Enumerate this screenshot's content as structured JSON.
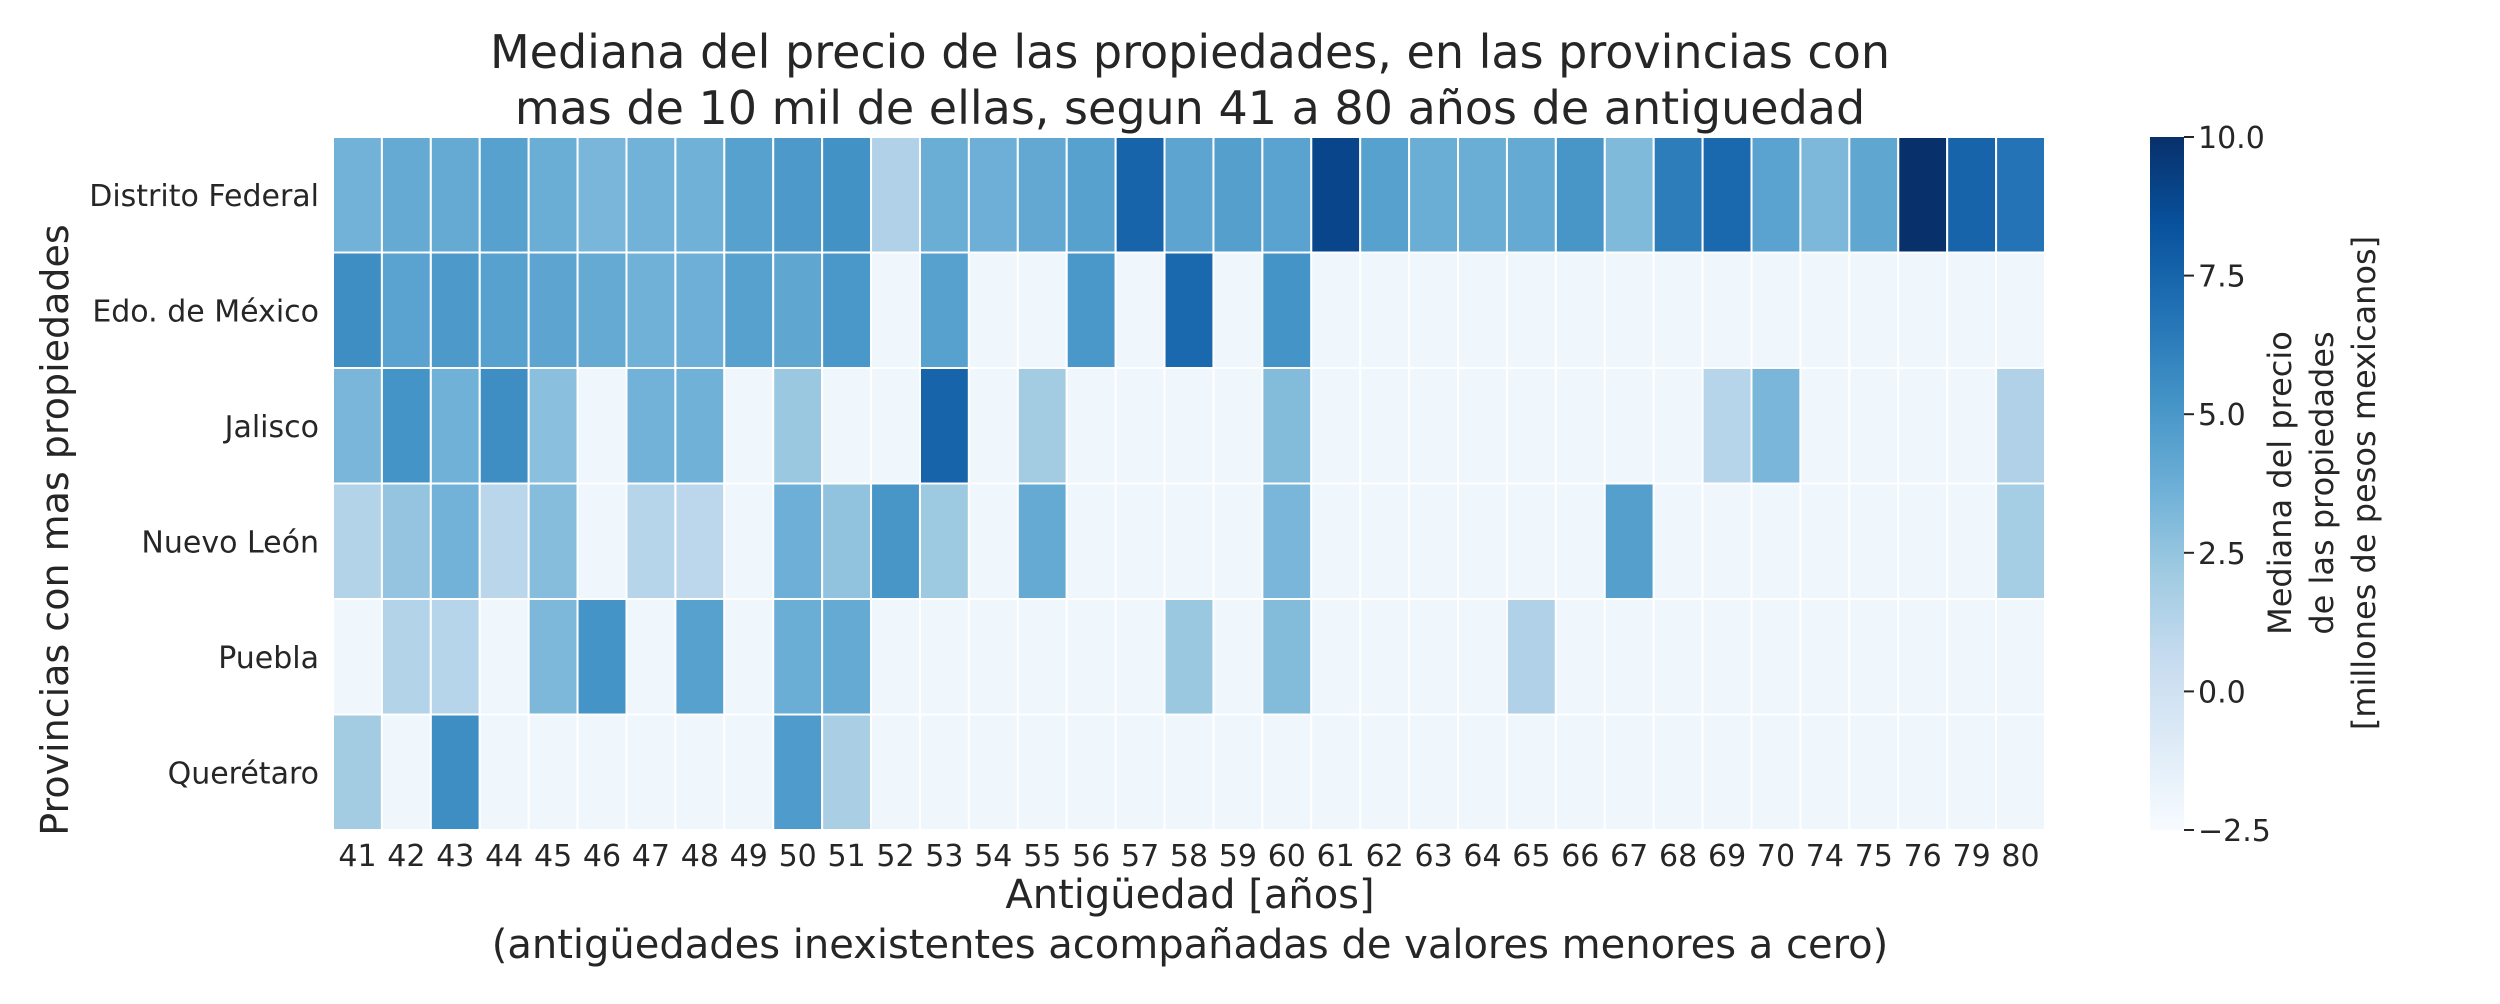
{
  "chart_data": {
    "type": "heatmap",
    "title_lines": [
      "Mediana del precio de las propiedades, en las provincias con",
      "mas de 10 mil de ellas, segun 41 a 80 años de antiguedad"
    ],
    "xlabel_lines": [
      "Antigüedad [años]",
      "(antigüedades inexistentes acompañadas de valores menores a cero)"
    ],
    "ylabel": "Provincias con mas propiedades",
    "colorbar_label_lines": [
      "Mediana del precio",
      "de las propiedades",
      "[millones de pesos mexicanos]"
    ],
    "colorbar_range": [
      -2.5,
      10.0
    ],
    "colorbar_ticks": [
      "−2.5",
      "0.0",
      "2.5",
      "5.0",
      "7.5",
      "10.0"
    ],
    "colormap": "Blues",
    "x": [
      "41",
      "42",
      "43",
      "44",
      "45",
      "46",
      "47",
      "48",
      "49",
      "50",
      "51",
      "52",
      "53",
      "54",
      "55",
      "56",
      "57",
      "58",
      "59",
      "60",
      "61",
      "62",
      "63",
      "64",
      "65",
      "66",
      "67",
      "68",
      "69",
      "70",
      "74",
      "75",
      "76",
      "79",
      "80"
    ],
    "y": [
      "Distrito Federal",
      "Edo. de México",
      "Jalisco",
      "Nuevo León",
      "Puebla",
      "Querétaro"
    ],
    "values": [
      [
        3.5,
        4.0,
        4.0,
        4.5,
        3.8,
        3.3,
        3.5,
        3.6,
        4.5,
        4.9,
        5.3,
        1.5,
        3.8,
        3.7,
        4.1,
        4.5,
        7.5,
        4.3,
        4.6,
        4.4,
        9.0,
        4.5,
        3.8,
        3.8,
        4.0,
        5.1,
        3.1,
        6.3,
        7.3,
        4.4,
        3.2,
        4.2,
        10.0,
        7.5,
        6.8
      ],
      [
        5.5,
        4.4,
        4.9,
        4.5,
        4.3,
        4.0,
        3.6,
        3.7,
        4.5,
        4.2,
        5.0,
        -2.0,
        4.5,
        -2.0,
        -2.0,
        5.0,
        -2.0,
        7.3,
        -2.0,
        5.2,
        -2.0,
        -2.0,
        -2.0,
        -2.0,
        -2.0,
        -2.0,
        -2.0,
        -2.0,
        -2.0,
        -2.0,
        -2.0,
        -2.0,
        -2.0,
        -2.0,
        -2.0
      ],
      [
        3.3,
        5.2,
        3.6,
        5.5,
        2.8,
        -2.0,
        3.5,
        3.6,
        -2.0,
        2.3,
        -2.0,
        -2.0,
        7.5,
        -2.0,
        2.0,
        -2.0,
        -2.0,
        -2.0,
        -2.0,
        3.0,
        -2.0,
        -2.0,
        -2.0,
        -2.0,
        -2.0,
        -2.0,
        -2.0,
        -2.0,
        1.2,
        3.3,
        -2.0,
        -2.0,
        -2.0,
        -2.0,
        1.5
      ],
      [
        1.4,
        2.5,
        3.5,
        1.1,
        2.9,
        -2.0,
        1.2,
        1.0,
        -2.0,
        3.7,
        2.6,
        5.1,
        2.2,
        -2.0,
        4.0,
        -2.0,
        -2.0,
        -2.0,
        -2.0,
        3.3,
        -2.0,
        -2.0,
        -2.0,
        -2.0,
        -2.0,
        -2.0,
        4.6,
        -2.0,
        -2.0,
        -2.0,
        -2.0,
        -2.0,
        -2.0,
        -2.0,
        1.9
      ],
      [
        -2.0,
        1.4,
        1.2,
        -2.0,
        3.2,
        5.2,
        -2.0,
        4.5,
        -2.0,
        3.8,
        4.0,
        -2.0,
        -2.0,
        -2.0,
        -2.0,
        -2.0,
        -2.0,
        2.3,
        -2.0,
        3.0,
        -2.0,
        -2.0,
        -2.0,
        -2.0,
        1.5,
        -2.0,
        -2.0,
        -2.0,
        -2.0,
        -2.0,
        -2.0,
        -2.0,
        -2.0,
        -2.0,
        -2.0
      ],
      [
        2.0,
        -2.0,
        5.5,
        -2.0,
        -2.0,
        -2.0,
        -2.0,
        -2.0,
        -2.0,
        4.8,
        1.7,
        -2.0,
        -2.0,
        -2.0,
        -2.0,
        -2.0,
        -2.0,
        -2.0,
        -2.0,
        -2.0,
        -2.0,
        -2.0,
        -2.0,
        -2.0,
        -2.0,
        -2.0,
        -2.0,
        -2.0,
        -2.0,
        -2.0,
        -2.0,
        -2.0,
        -2.0,
        -2.0,
        -2.0
      ]
    ],
    "grid": false,
    "legend": "colorbar-right"
  }
}
